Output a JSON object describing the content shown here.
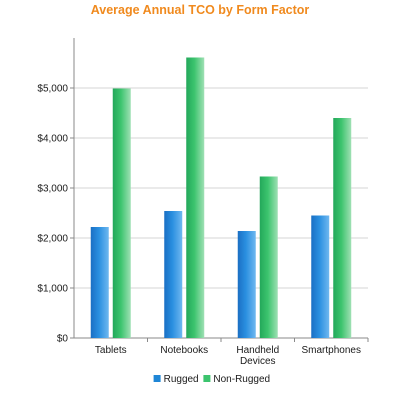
{
  "chart_data": {
    "type": "bar",
    "title": "Average Annual TCO by Form Factor",
    "xlabel": "",
    "ylabel": "",
    "categories": [
      "Tablets",
      "Notebooks",
      "Handheld Devices",
      "Smartphones"
    ],
    "category_lines": [
      [
        "Tablets"
      ],
      [
        "Notebooks"
      ],
      [
        "Handheld",
        "Devices"
      ],
      [
        "Smartphones"
      ]
    ],
    "series": [
      {
        "name": "Rugged",
        "values": [
          2220,
          2540,
          2140,
          2450
        ],
        "color": "#1f86d6"
      },
      {
        "name": "Non-Rugged",
        "values": [
          4990,
          5610,
          3230,
          4400
        ],
        "color": "#3cc46e"
      }
    ],
    "ylim": [
      0,
      6000
    ],
    "yticks": [
      0,
      1000,
      2000,
      3000,
      4000,
      5000
    ],
    "ytick_labels": [
      "$0",
      "$1,000",
      "$2,000",
      "$3,000",
      "$4,000",
      "$5,000"
    ],
    "grid": true,
    "legend": "bottom"
  }
}
